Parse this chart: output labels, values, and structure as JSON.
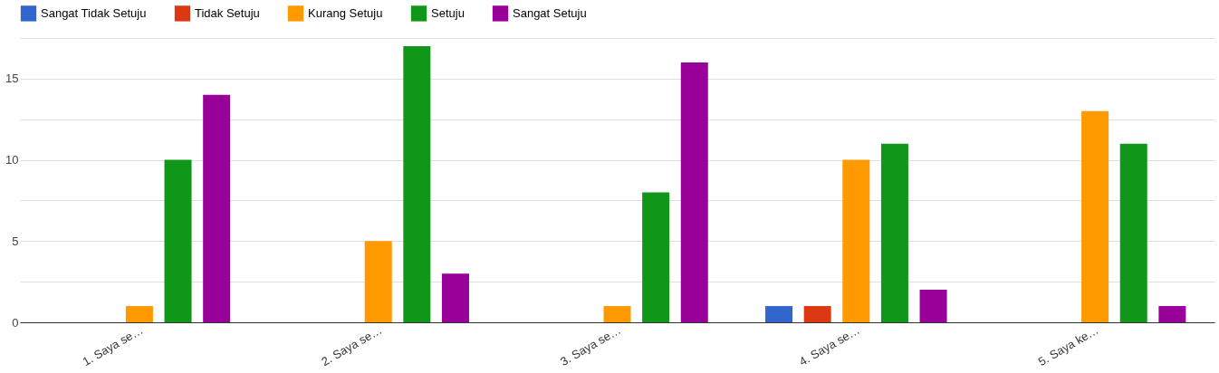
{
  "chart_data": {
    "type": "bar",
    "categories": [
      "1. Saya se…",
      "2. Saya se…",
      "3. Saya se…",
      "4. Saya se…",
      "5. Saya ke…"
    ],
    "series": [
      {
        "name": "Sangat Tidak Setuju",
        "color": "#3366cc",
        "values": [
          0,
          0,
          0,
          1,
          0
        ]
      },
      {
        "name": "Tidak Setuju",
        "color": "#dc3912",
        "values": [
          0,
          0,
          0,
          1,
          0
        ]
      },
      {
        "name": "Kurang Setuju",
        "color": "#ff9900",
        "values": [
          1,
          5,
          1,
          10,
          13
        ]
      },
      {
        "name": "Setuju",
        "color": "#109618",
        "values": [
          10,
          17,
          8,
          11,
          11
        ]
      },
      {
        "name": "Sangat Setuju",
        "color": "#990099",
        "values": [
          14,
          3,
          16,
          2,
          1
        ]
      }
    ],
    "ylim": [
      0,
      17.5
    ],
    "yticks": [
      0,
      {
        "value": 2.5,
        "label": null
      },
      5,
      {
        "value": 7.5,
        "label": null
      },
      10,
      {
        "value": 12.5,
        "label": null
      },
      15,
      {
        "value": 17.5,
        "label": null
      }
    ],
    "grid": "y",
    "legend": "top left"
  }
}
